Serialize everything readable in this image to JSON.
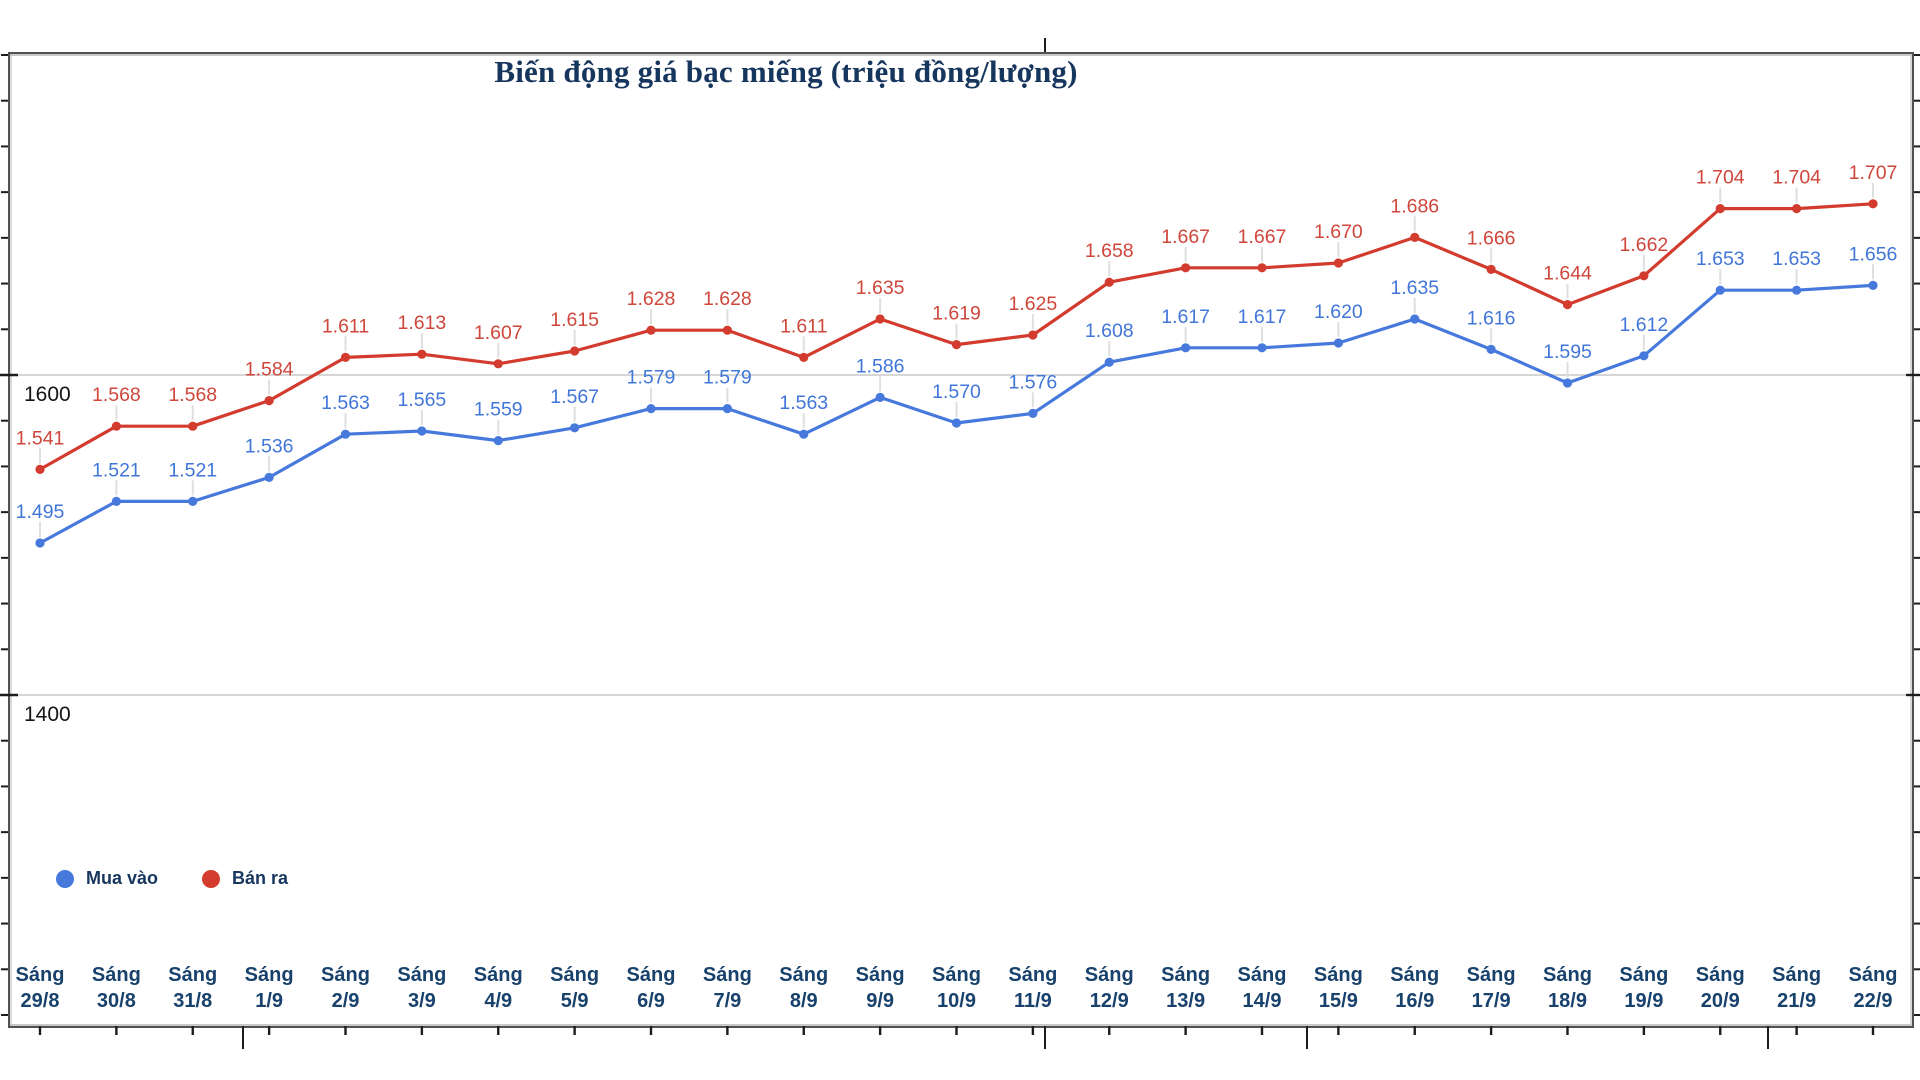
{
  "title": "Biến động giá bạc miếng (triệu đồng/lượng)",
  "legend": {
    "items": [
      {
        "label": "Mua vào",
        "color": "#4779DD"
      },
      {
        "label": "Bán ra",
        "color": "#D23B2D"
      }
    ]
  },
  "y_axis": {
    "gridline_labels": [
      "1600",
      "1400"
    ]
  },
  "chart_data": {
    "type": "line",
    "title": "Biến động giá bạc miếng (triệu đồng/lượng)",
    "categories": [
      "Sáng 29/8",
      "Sáng 30/8",
      "Sáng 31/8",
      "Sáng 1/9",
      "Sáng 2/9",
      "Sáng 3/9",
      "Sáng 4/9",
      "Sáng 5/9",
      "Sáng 6/9",
      "Sáng 7/9",
      "Sáng 8/9",
      "Sáng 9/9",
      "Sáng 10/9",
      "Sáng 11/9",
      "Sáng 12/9",
      "Sáng 13/9",
      "Sáng 14/9",
      "Sáng 15/9",
      "Sáng 16/9",
      "Sáng 17/9",
      "Sáng 18/9",
      "Sáng 19/9",
      "Sáng 20/9",
      "Sáng 21/9",
      "Sáng 22/9"
    ],
    "series": [
      {
        "name": "Mua vào",
        "color": "#4779DD",
        "label_color": "#4176D9",
        "values": [
          1495,
          1521,
          1521,
          1536,
          1563,
          1565,
          1559,
          1567,
          1579,
          1579,
          1563,
          1586,
          1570,
          1576,
          1608,
          1617,
          1617,
          1620,
          1635,
          1616,
          1595,
          1612,
          1653,
          1653,
          1656
        ]
      },
      {
        "name": "Bán ra",
        "color": "#D23B2D",
        "label_color": "#CF463B",
        "values": [
          1541,
          1568,
          1568,
          1584,
          1611,
          1613,
          1607,
          1615,
          1628,
          1628,
          1611,
          1635,
          1619,
          1625,
          1658,
          1667,
          1667,
          1670,
          1686,
          1666,
          1644,
          1662,
          1704,
          1704,
          1707
        ]
      }
    ],
    "y_gridlines": [
      1600,
      1400
    ],
    "ylim": [
      1300,
      1760
    ],
    "grid": "horizontal-only",
    "legend_position": "bottom-left",
    "value_label_format": "thousands-dot-separator"
  }
}
